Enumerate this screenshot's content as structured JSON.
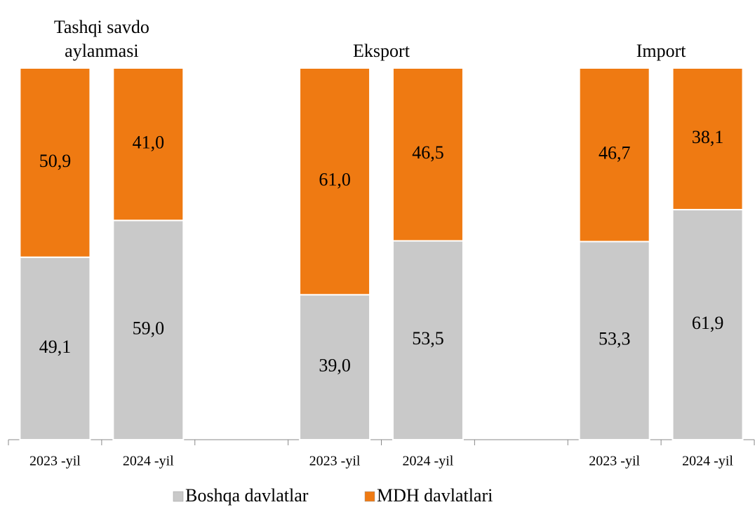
{
  "chart_data": {
    "type": "stacked_bar",
    "groups": [
      "Tashqi savdo aylanmasi",
      "Eksport",
      "Import"
    ],
    "categories": [
      "2023 -yil",
      "2024 -yil",
      null,
      "2023 -yil",
      "2024 -yil",
      null,
      "2023 -yil",
      "2024 -yil"
    ],
    "series": [
      {
        "name": "Boshqa davlatlar",
        "color": "#c9c9c9",
        "values": [
          49.1,
          59.0,
          null,
          39.0,
          53.5,
          null,
          53.3,
          61.9
        ],
        "value_labels": [
          "49,1",
          "59,0",
          null,
          "39,0",
          "53,5",
          null,
          "53,3",
          "61,9"
        ]
      },
      {
        "name": "MDH davlatlari",
        "color": "#ef7a12",
        "values": [
          50.9,
          41.0,
          null,
          61.0,
          46.5,
          null,
          46.7,
          38.1
        ],
        "value_labels": [
          "50,9",
          "41,0",
          null,
          "61,0",
          "46,5",
          null,
          "46,7",
          "38,1"
        ]
      }
    ],
    "ylim": [
      0,
      100
    ],
    "legend": "bottom"
  }
}
